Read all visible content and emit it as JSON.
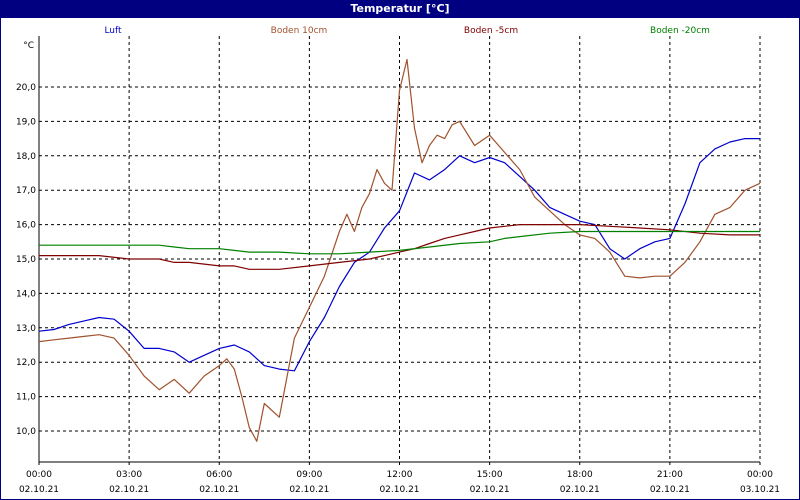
{
  "chart_data": {
    "type": "line",
    "title": "Temperatur [°C]",
    "ylabel": "°C",
    "xlabel": "",
    "ylim": [
      9.5,
      21.1
    ],
    "yticks": [
      10,
      11,
      12,
      13,
      14,
      15,
      16,
      17,
      18,
      19,
      20
    ],
    "ytick_labels": [
      "10,0",
      "11,0",
      "12,0",
      "13,0",
      "14,0",
      "15,0",
      "16,0",
      "17,0",
      "18,0",
      "19,0",
      "20,0"
    ],
    "xlim": [
      0,
      24
    ],
    "xticks": [
      0,
      3,
      6,
      9,
      12,
      15,
      18,
      21,
      24
    ],
    "xtick_time": [
      "00:00",
      "03:00",
      "06:00",
      "09:00",
      "12:00",
      "15:00",
      "18:00",
      "21:00",
      "00:00"
    ],
    "xtick_date": [
      "02.10.21",
      "02.10.21",
      "02.10.21",
      "02.10.21",
      "02.10.21",
      "02.10.21",
      "02.10.21",
      "02.10.21",
      "03.10.21"
    ],
    "x_unit": "hours since 02.10.21 00:00",
    "grid": true,
    "legend_position": "top",
    "series": [
      {
        "name": "Luft",
        "color": "#0000cc",
        "x": [
          0,
          0.5,
          1,
          1.5,
          2,
          2.5,
          3,
          3.5,
          4,
          4.5,
          5,
          5.5,
          6,
          6.5,
          7,
          7.5,
          8,
          8.5,
          9,
          9.5,
          10,
          10.5,
          11,
          11.5,
          12,
          12.5,
          13,
          13.5,
          14,
          14.5,
          15,
          15.5,
          16,
          16.5,
          17,
          17.5,
          18,
          18.5,
          19,
          19.5,
          20,
          20.5,
          21,
          21.5,
          22,
          22.5,
          23,
          23.5,
          24
        ],
        "y": [
          12.9,
          12.95,
          13.1,
          13.2,
          13.3,
          13.25,
          12.9,
          12.4,
          12.4,
          12.3,
          12.0,
          12.2,
          12.4,
          12.5,
          12.3,
          11.9,
          11.8,
          11.75,
          12.6,
          13.3,
          14.2,
          14.9,
          15.2,
          15.9,
          16.4,
          17.5,
          17.3,
          17.6,
          18.0,
          17.8,
          17.95,
          17.8,
          17.4,
          17.0,
          16.5,
          16.3,
          16.1,
          16.0,
          15.3,
          15.0,
          15.3,
          15.5,
          15.6,
          16.6,
          17.8,
          18.2,
          18.4,
          18.5,
          18.5
        ]
      },
      {
        "name": "Boden 10cm",
        "color": "#a0522d",
        "x": [
          0,
          0.5,
          1,
          1.5,
          2,
          2.5,
          3,
          3.5,
          4,
          4.5,
          5,
          5.5,
          6,
          6.25,
          6.5,
          6.75,
          7,
          7.25,
          7.5,
          8,
          8.5,
          9,
          9.5,
          10,
          10.25,
          10.5,
          10.75,
          11,
          11.25,
          11.5,
          11.75,
          12,
          12.25,
          12.5,
          12.75,
          13,
          13.25,
          13.5,
          13.75,
          14,
          14.5,
          15,
          15.5,
          16,
          16.5,
          17,
          17.5,
          18,
          18.5,
          19,
          19.5,
          20,
          20.5,
          21,
          21.5,
          22,
          22.5,
          23,
          23.5,
          24
        ],
        "y": [
          12.6,
          12.65,
          12.7,
          12.75,
          12.8,
          12.7,
          12.2,
          11.6,
          11.2,
          11.5,
          11.1,
          11.6,
          11.9,
          12.1,
          11.8,
          11.0,
          10.1,
          9.7,
          10.8,
          10.4,
          12.7,
          13.6,
          14.5,
          15.8,
          16.3,
          15.8,
          16.5,
          16.9,
          17.6,
          17.2,
          17.0,
          19.9,
          20.8,
          18.8,
          17.8,
          18.3,
          18.6,
          18.5,
          18.9,
          19.0,
          18.3,
          18.6,
          18.1,
          17.6,
          16.8,
          16.4,
          16.0,
          15.7,
          15.6,
          15.2,
          14.5,
          14.45,
          14.5,
          14.5,
          14.9,
          15.5,
          16.3,
          16.5,
          17.0,
          17.2
        ]
      },
      {
        "name": "Boden -5cm",
        "color": "#800000",
        "x": [
          0,
          2,
          3,
          4,
          4.5,
          5,
          6,
          6.5,
          7,
          8,
          9,
          10,
          11,
          11.5,
          12,
          12.5,
          13,
          13.5,
          14,
          14.5,
          15,
          15.5,
          16,
          17,
          18,
          19,
          20,
          21,
          22,
          23,
          24
        ],
        "y": [
          15.1,
          15.1,
          15.0,
          15.0,
          14.9,
          14.9,
          14.8,
          14.8,
          14.7,
          14.7,
          14.8,
          14.9,
          15.0,
          15.1,
          15.2,
          15.3,
          15.45,
          15.6,
          15.7,
          15.8,
          15.9,
          15.95,
          16.0,
          16.0,
          16.0,
          15.95,
          15.9,
          15.85,
          15.75,
          15.7,
          15.7
        ]
      },
      {
        "name": "Boden -20cm",
        "color": "#008000",
        "x": [
          0,
          2,
          3,
          4,
          4.5,
          5,
          6,
          6.5,
          7,
          8,
          9,
          10,
          11,
          12,
          13,
          14,
          15,
          15.5,
          16,
          17,
          18,
          19,
          20,
          21,
          22,
          23,
          24
        ],
        "y": [
          15.4,
          15.4,
          15.4,
          15.4,
          15.35,
          15.3,
          15.3,
          15.25,
          15.2,
          15.2,
          15.15,
          15.15,
          15.2,
          15.25,
          15.35,
          15.45,
          15.5,
          15.6,
          15.65,
          15.75,
          15.8,
          15.8,
          15.8,
          15.8,
          15.8,
          15.8,
          15.8
        ]
      }
    ]
  }
}
